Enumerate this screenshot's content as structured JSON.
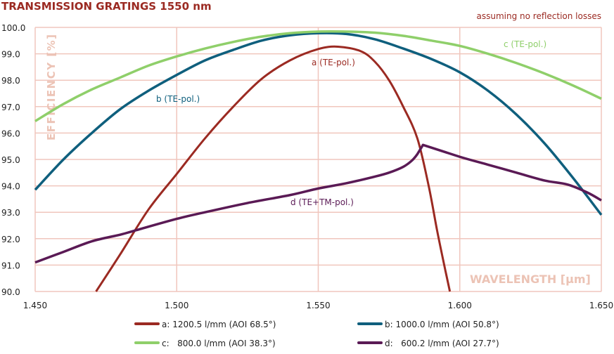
{
  "chart_data": {
    "type": "line",
    "title": "TRANSMISSION GRATINGS 1550 nm",
    "note": "assuming no reflection losses",
    "xlabel": "WAVELENGTH [µm]",
    "ylabel": "EFFICIENCY [%]",
    "xlim": [
      1.45,
      1.65
    ],
    "ylim": [
      90,
      100
    ],
    "xticks": [
      "1.450",
      "1.500",
      "1.550",
      "1.600",
      "1.650"
    ],
    "yticks": [
      "90.0",
      "91.0",
      "92.0",
      "93.0",
      "94.0",
      "95.0",
      "96.0",
      "97.0",
      "98.0",
      "99.0",
      "100.0"
    ],
    "grid": true,
    "legend_placement": "bottom",
    "series": [
      {
        "name": "a: 1200.5 l/mm (AOI 68.5°)",
        "label": "a (TE-pol.)",
        "color": "#9b2a22",
        "points": [
          [
            1.4715,
            90
          ],
          [
            1.48,
            91.4
          ],
          [
            1.49,
            93.1
          ],
          [
            1.5,
            94.45
          ],
          [
            1.51,
            95.8
          ],
          [
            1.52,
            97.0
          ],
          [
            1.53,
            98.05
          ],
          [
            1.54,
            98.75
          ],
          [
            1.55,
            99.18
          ],
          [
            1.557,
            99.27
          ],
          [
            1.565,
            99.1
          ],
          [
            1.57,
            98.7
          ],
          [
            1.575,
            98.0
          ],
          [
            1.58,
            97.0
          ],
          [
            1.585,
            95.8
          ],
          [
            1.589,
            94.0
          ],
          [
            1.592,
            92.3
          ],
          [
            1.5945,
            91.0
          ],
          [
            1.5965,
            90
          ]
        ]
      },
      {
        "name": "b: 1000.0 l/mm (AOI 50.8°)",
        "label": "b (TE-pol.)",
        "color": "#0f5f7d",
        "points": [
          [
            1.45,
            93.85
          ],
          [
            1.46,
            95.0
          ],
          [
            1.47,
            96.0
          ],
          [
            1.48,
            96.9
          ],
          [
            1.49,
            97.6
          ],
          [
            1.5,
            98.2
          ],
          [
            1.51,
            98.75
          ],
          [
            1.52,
            99.15
          ],
          [
            1.53,
            99.5
          ],
          [
            1.54,
            99.7
          ],
          [
            1.55,
            99.78
          ],
          [
            1.56,
            99.75
          ],
          [
            1.57,
            99.55
          ],
          [
            1.58,
            99.2
          ],
          [
            1.59,
            98.8
          ],
          [
            1.6,
            98.3
          ],
          [
            1.61,
            97.6
          ],
          [
            1.62,
            96.7
          ],
          [
            1.63,
            95.6
          ],
          [
            1.64,
            94.3
          ],
          [
            1.65,
            92.9
          ]
        ]
      },
      {
        "name": "c:   800.0 l/mm (AOI 38.3°)",
        "label": "c (TE-pol.)",
        "color": "#8fcf6a",
        "points": [
          [
            1.45,
            96.45
          ],
          [
            1.46,
            97.1
          ],
          [
            1.47,
            97.65
          ],
          [
            1.48,
            98.1
          ],
          [
            1.49,
            98.55
          ],
          [
            1.5,
            98.9
          ],
          [
            1.51,
            99.2
          ],
          [
            1.52,
            99.45
          ],
          [
            1.53,
            99.65
          ],
          [
            1.54,
            99.78
          ],
          [
            1.55,
            99.84
          ],
          [
            1.56,
            99.84
          ],
          [
            1.57,
            99.8
          ],
          [
            1.58,
            99.68
          ],
          [
            1.59,
            99.5
          ],
          [
            1.6,
            99.3
          ],
          [
            1.61,
            99.0
          ],
          [
            1.62,
            98.65
          ],
          [
            1.63,
            98.25
          ],
          [
            1.64,
            97.8
          ],
          [
            1.65,
            97.3
          ]
        ]
      },
      {
        "name": "d:   600.2 l/mm (AOI 27.7°)",
        "label": "d (TE+TM-pol.)",
        "color": "#5a1a55",
        "points": [
          [
            1.45,
            91.1
          ],
          [
            1.46,
            91.5
          ],
          [
            1.47,
            91.9
          ],
          [
            1.48,
            92.15
          ],
          [
            1.485,
            92.3
          ],
          [
            1.5,
            92.75
          ],
          [
            1.51,
            93.0
          ],
          [
            1.525,
            93.35
          ],
          [
            1.54,
            93.65
          ],
          [
            1.55,
            93.9
          ],
          [
            1.56,
            94.1
          ],
          [
            1.57,
            94.35
          ],
          [
            1.575,
            94.5
          ],
          [
            1.58,
            94.72
          ],
          [
            1.583,
            94.95
          ],
          [
            1.585,
            95.2
          ],
          [
            1.587,
            95.55
          ],
          [
            1.6,
            95.1
          ],
          [
            1.61,
            94.8
          ],
          [
            1.62,
            94.5
          ],
          [
            1.63,
            94.2
          ],
          [
            1.638,
            94.05
          ],
          [
            1.645,
            93.75
          ],
          [
            1.65,
            93.45
          ]
        ]
      }
    ]
  }
}
